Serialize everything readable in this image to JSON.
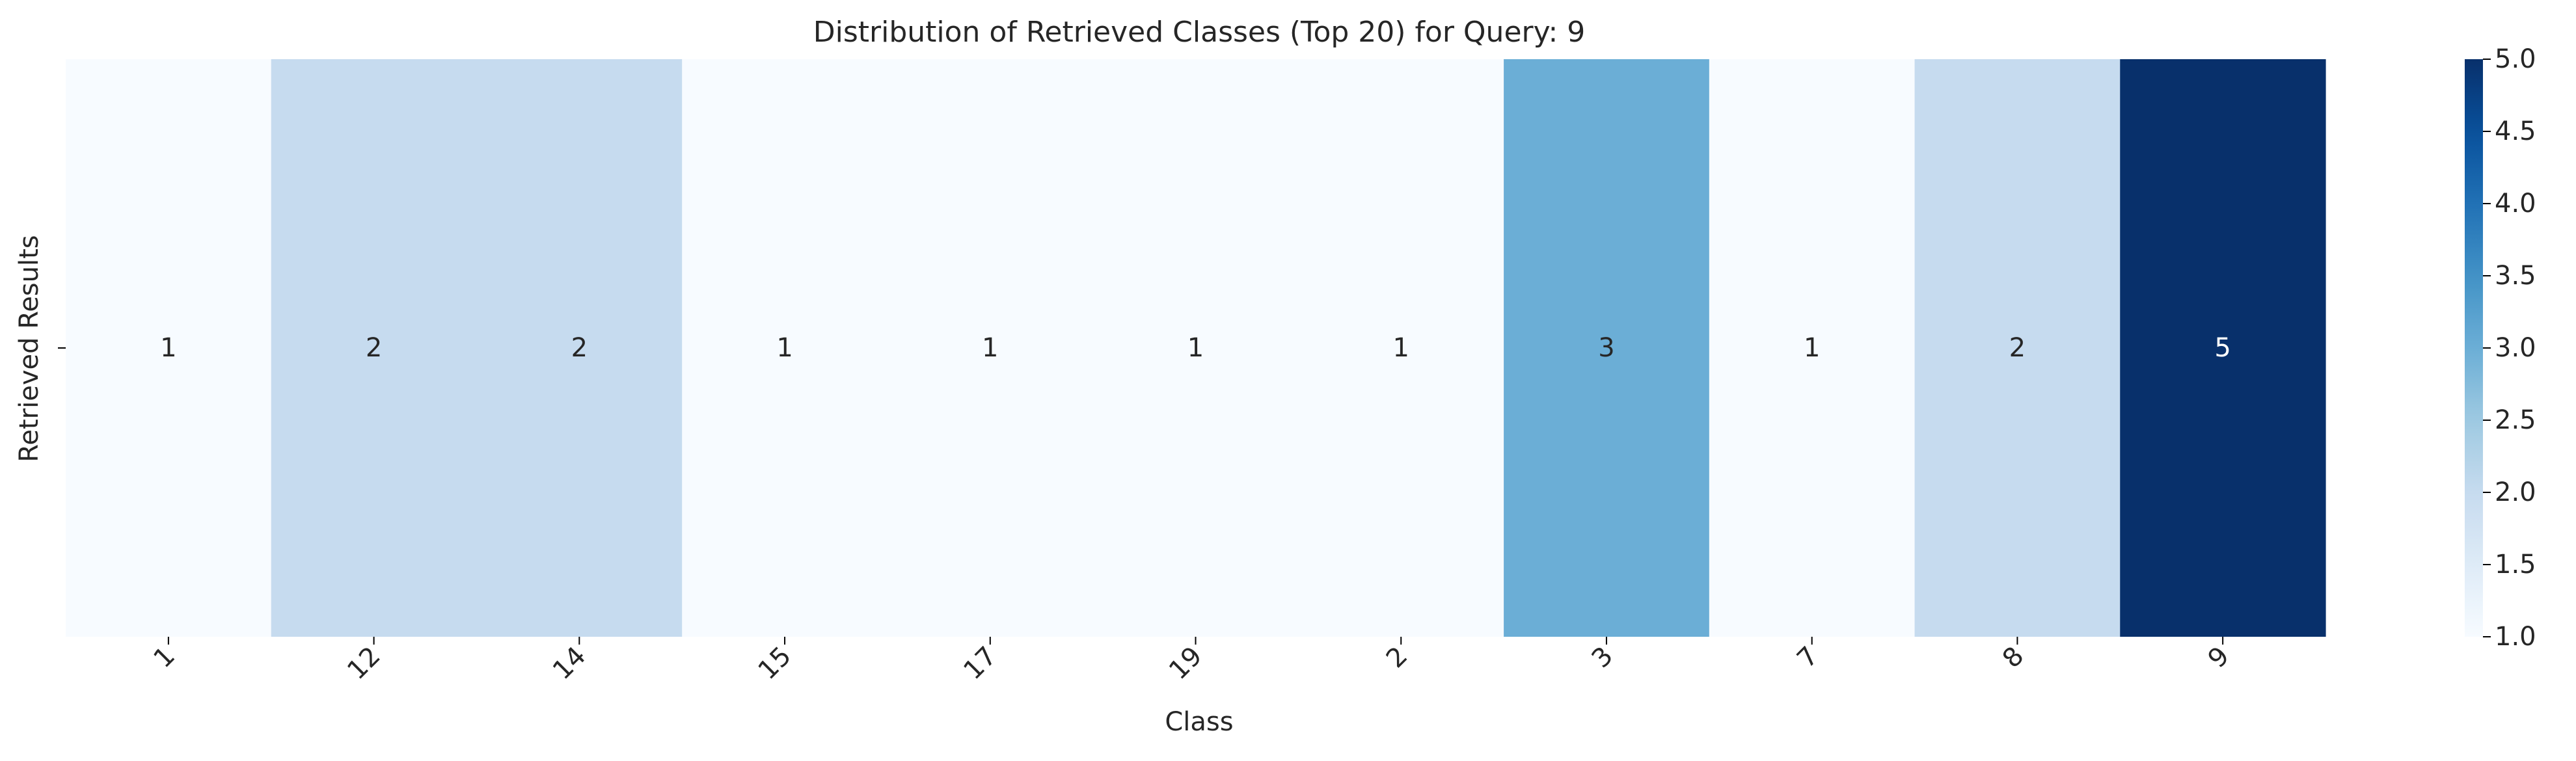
{
  "chart_data": {
    "type": "heatmap",
    "title": "Distribution of Retrieved Classes (Top 20) for Query: 9",
    "xlabel": "Class",
    "ylabel": "Retrieved Results",
    "x_categories": [
      "1",
      "12",
      "14",
      "15",
      "17",
      "19",
      "2",
      "3",
      "7",
      "8",
      "9"
    ],
    "y_categories": [
      ""
    ],
    "values": [
      [
        1,
        2,
        2,
        1,
        1,
        1,
        1,
        3,
        1,
        2,
        5
      ]
    ],
    "data_labels": [
      "1",
      "2",
      "2",
      "1",
      "1",
      "1",
      "1",
      "3",
      "1",
      "2",
      "5"
    ],
    "colormap": "Blues",
    "colorbar": {
      "min": 1.0,
      "max": 5.0,
      "ticks": [
        1.0,
        1.5,
        2.0,
        2.5,
        3.0,
        3.5,
        4.0,
        4.5,
        5.0
      ],
      "tick_labels": [
        "1.0",
        "1.5",
        "2.0",
        "2.5",
        "3.0",
        "3.5",
        "4.0",
        "4.5",
        "5.0"
      ]
    },
    "colors": {
      "text_dark": "#262626",
      "text_light": "#ffffff",
      "axis": "#000000"
    },
    "grid": false,
    "legend": "colorbar-right"
  }
}
